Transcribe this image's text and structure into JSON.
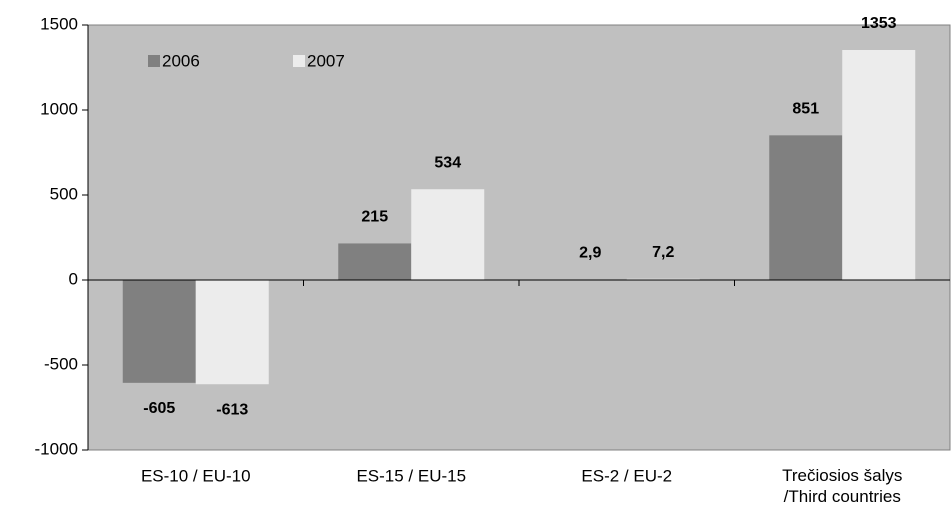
{
  "chart_data": {
    "type": "bar",
    "categories": [
      "ES-10 / EU-10",
      "ES-15 / EU-15",
      "ES-2 / EU-2",
      "Trečiosios šalys\n/Third countries"
    ],
    "series": [
      {
        "name": "2006",
        "color": "#808080",
        "values": [
          -605,
          215,
          2.9,
          851
        ],
        "value_labels": [
          "-605",
          "215",
          "2,9",
          "851"
        ]
      },
      {
        "name": "2007",
        "color": "#ececec",
        "values": [
          -613,
          534,
          7.2,
          1353
        ],
        "value_labels": [
          "-613",
          "534",
          "7,2",
          "1353"
        ]
      }
    ],
    "ylim": [
      -1000,
      1500
    ],
    "yticks": [
      -1000,
      -500,
      0,
      500,
      1000,
      1500
    ],
    "background": "#c0c0c0",
    "legend": "top-left"
  }
}
